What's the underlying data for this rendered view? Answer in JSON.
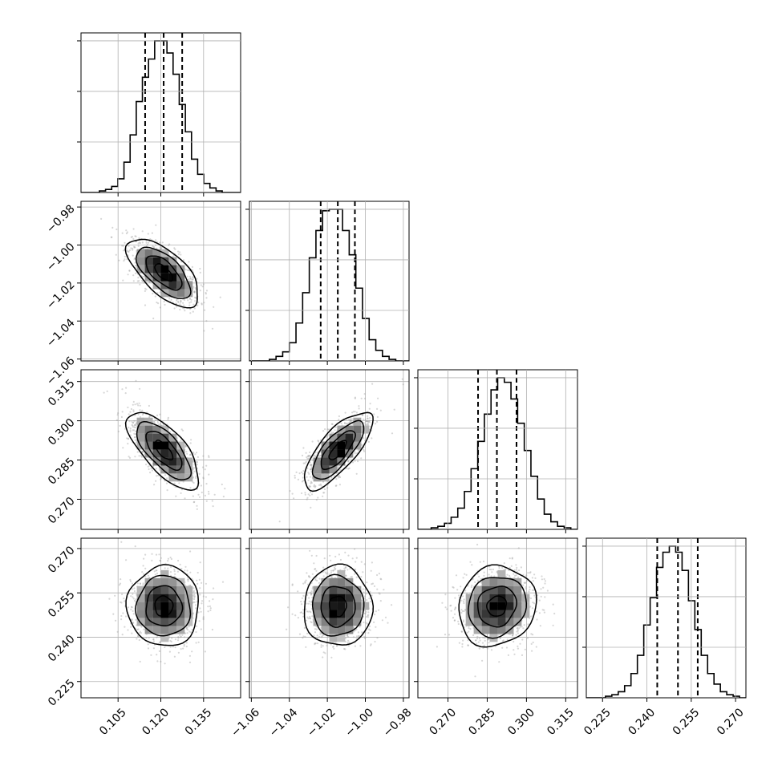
{
  "chart_data": {
    "type": "corner",
    "grid": true,
    "parameters": [
      {
        "range": [
          0.092,
          0.148
        ],
        "ticks": [
          0.105,
          0.12,
          0.135
        ],
        "tick_labels": [
          "0.105",
          "0.120",
          "0.135"
        ],
        "quantiles": [
          0.1145,
          0.121,
          0.1275
        ],
        "mean": 0.121,
        "sd": 0.0063
      },
      {
        "range": [
          -1.061,
          -0.977
        ],
        "ticks": [
          -1.06,
          -1.04,
          -1.02,
          -1.0,
          -0.98
        ],
        "tick_labels": [
          "−1.06",
          "−1.04",
          "−1.02",
          "−1.00",
          "−0.98"
        ],
        "quantiles": [
          -1.0235,
          -1.0145,
          -1.0055
        ],
        "mean": -1.0145,
        "sd": 0.009
      },
      {
        "range": [
          0.2585,
          0.3195
        ],
        "ticks": [
          0.27,
          0.285,
          0.3,
          0.315
        ],
        "tick_labels": [
          "0.270",
          "0.285",
          "0.300",
          "0.315"
        ],
        "quantiles": [
          0.2815,
          0.2887,
          0.2962
        ],
        "mean": 0.2887,
        "sd": 0.0074
      },
      {
        "range": [
          0.2195,
          0.2735
        ],
        "ticks": [
          0.225,
          0.24,
          0.255,
          0.27
        ],
        "tick_labels": [
          "0.225",
          "0.240",
          "0.255",
          "0.270"
        ],
        "quantiles": [
          0.2435,
          0.2505,
          0.2572
        ],
        "mean": 0.2505,
        "sd": 0.0068
      }
    ],
    "histograms": [
      [
        0,
        0,
        0,
        1,
        2,
        4,
        9,
        20,
        38,
        60,
        76,
        88,
        100,
        100,
        92,
        78,
        58,
        40,
        22,
        12,
        6,
        3,
        1,
        0,
        0,
        0
      ],
      [
        0,
        0,
        0,
        1,
        3,
        6,
        12,
        25,
        45,
        68,
        86,
        99,
        100,
        100,
        86,
        70,
        48,
        28,
        14,
        7,
        3,
        1,
        0,
        0
      ],
      [
        0,
        0,
        1,
        2,
        4,
        8,
        14,
        25,
        40,
        58,
        76,
        92,
        100,
        97,
        86,
        70,
        52,
        35,
        20,
        10,
        5,
        2,
        1,
        0
      ],
      [
        0,
        0,
        0,
        1,
        2,
        4,
        8,
        16,
        28,
        48,
        66,
        86,
        96,
        100,
        96,
        84,
        64,
        45,
        28,
        16,
        9,
        4,
        2,
        1,
        0
      ]
    ],
    "correlations": {
      "1-0": -0.65,
      "2-0": -0.7,
      "2-1": 0.75,
      "3-0": 0.0,
      "3-1": 0.0,
      "3-2": 0.1
    },
    "contour_levels_sigma": [
      0.5,
      1.0,
      1.5,
      2.0
    ],
    "colors": {
      "points": "#9a9a9a",
      "lines": "#000000",
      "grid": "#b0b0b0",
      "density_ramp": [
        "#ffffff",
        "#000000"
      ]
    }
  }
}
